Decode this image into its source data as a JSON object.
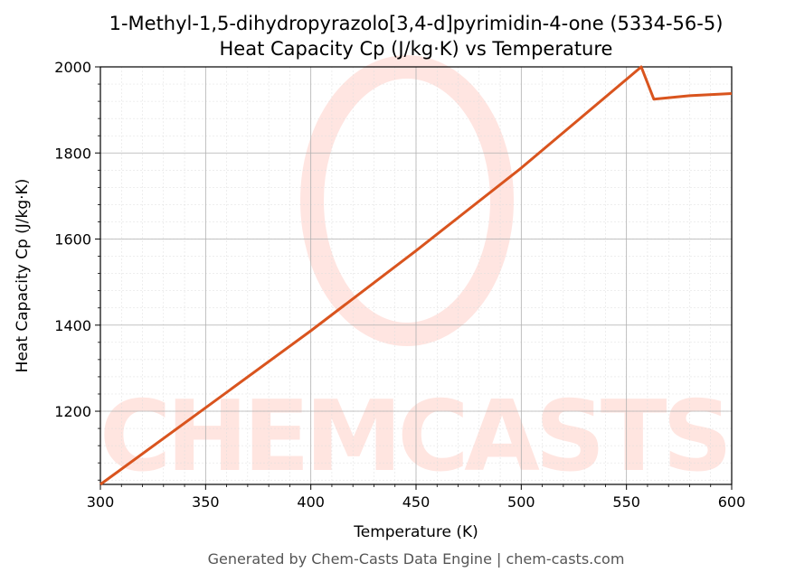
{
  "chart_data": {
    "type": "line",
    "title": "1-Methyl-1,5-dihydropyrazolo[3,4-d]pyrimidin-4-one (5334-56-5)",
    "subtitle": "Heat Capacity Cp (J/kg·K) vs Temperature",
    "xlabel": "Temperature (K)",
    "ylabel": "Heat Capacity Cp (J/kg·K)",
    "xlim": [
      300,
      600
    ],
    "ylim": [
      1030,
      2000
    ],
    "xticks": [
      300,
      350,
      400,
      450,
      500,
      550,
      600
    ],
    "yticks": [
      1200,
      1400,
      1600,
      1800,
      2000
    ],
    "grid": true,
    "series": [
      {
        "color": "#d9541e",
        "x": [
          300,
          350,
          400,
          450,
          500,
          557,
          563,
          580,
          600
        ],
        "y": [
          1030,
          1208,
          1387,
          1573,
          1765,
          2000,
          1925,
          1933,
          1938
        ]
      }
    ],
    "watermark": "CHEMCASTS"
  },
  "footer": "Generated by Chem-Casts Data Engine | chem-casts.com"
}
